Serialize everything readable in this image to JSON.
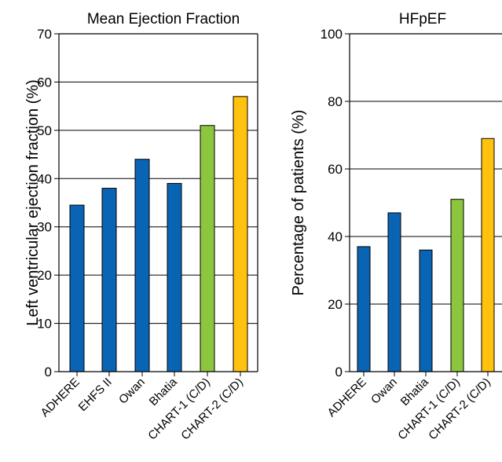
{
  "chart_data": [
    {
      "type": "bar",
      "title": "Mean Ejection Fraction",
      "ylabel": "Left ventricular ejection fraction (%)",
      "xlabel": "",
      "ylim": [
        0,
        70
      ],
      "yticks": [
        0,
        10,
        20,
        30,
        40,
        50,
        60,
        70
      ],
      "grid": "horizontal",
      "categories": [
        "ADHERE",
        "EHFS II",
        "Owan",
        "Bhatia",
        "CHART-1 (C/D)",
        "CHART-2 (C/D)"
      ],
      "values": [
        34.5,
        38,
        44,
        39,
        51,
        57
      ],
      "colors": [
        "#0a64b4",
        "#0a64b4",
        "#0a64b4",
        "#0a64b4",
        "#8cc63f",
        "#ffc20e"
      ]
    },
    {
      "type": "bar",
      "title": "HFpEF",
      "ylabel": "Percentage of patients (%)",
      "xlabel": "",
      "ylim": [
        0,
        100
      ],
      "yticks": [
        0,
        20,
        40,
        60,
        80,
        100
      ],
      "grid": "horizontal",
      "categories": [
        "ADHERE",
        "Owan",
        "Bhatia",
        "CHART-1 (C/D)",
        "CHART-2 (C/D)"
      ],
      "values": [
        37,
        47,
        36,
        51,
        69
      ],
      "colors": [
        "#0a64b4",
        "#0a64b4",
        "#0a64b4",
        "#8cc63f",
        "#ffc20e"
      ]
    }
  ]
}
